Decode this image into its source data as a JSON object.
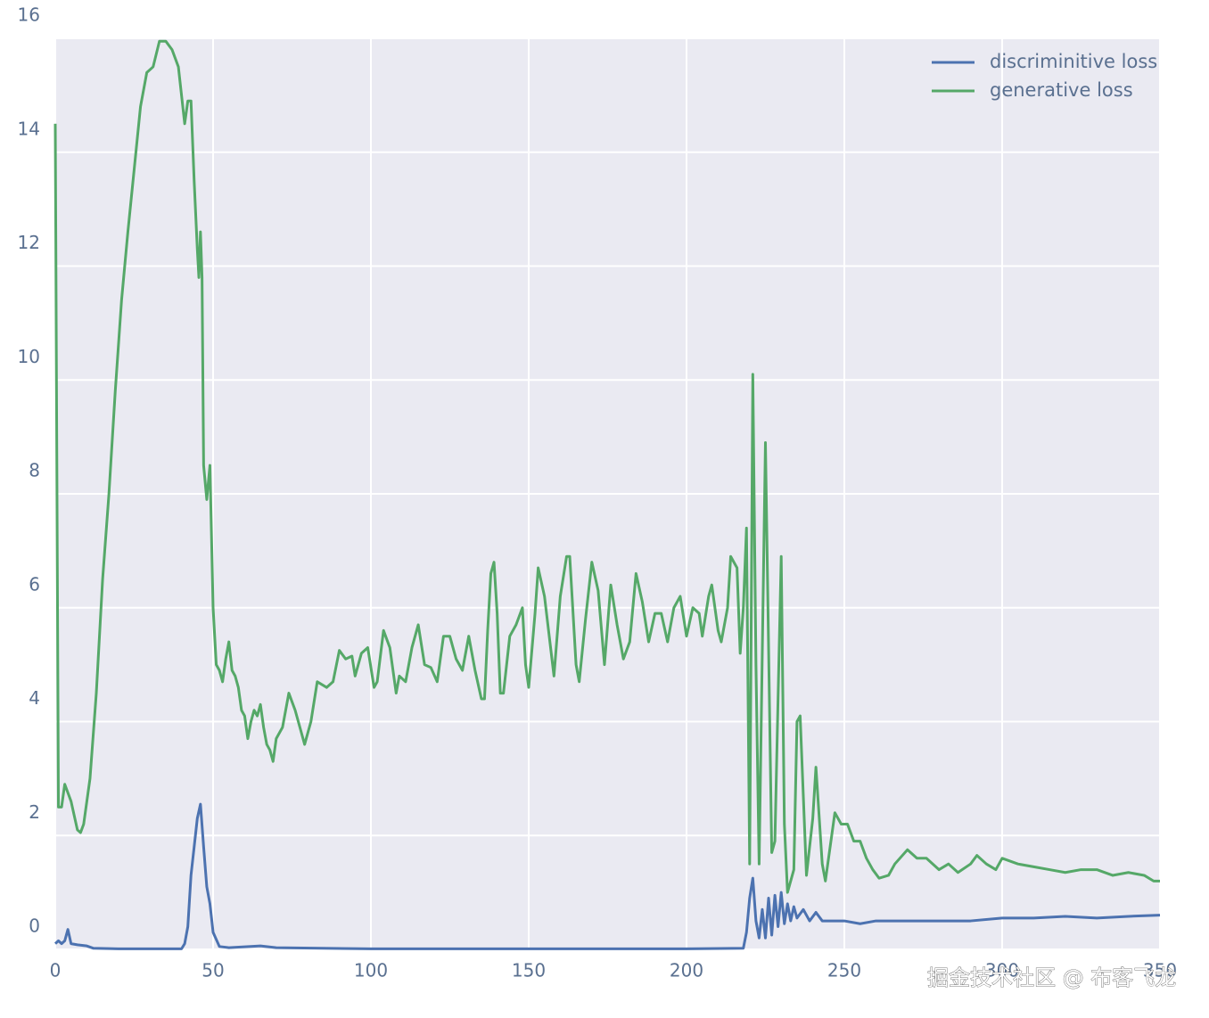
{
  "chart_data": {
    "type": "line",
    "xlim": [
      0,
      350
    ],
    "xticks": [
      0,
      50,
      100,
      150,
      200,
      250,
      300,
      350
    ],
    "ylim": [
      0,
      16
    ],
    "yticks": [
      0,
      2,
      4,
      6,
      8,
      10,
      12,
      14,
      16
    ],
    "grid": true,
    "legend": "upper right",
    "series": [
      {
        "name": "discriminitive loss",
        "color": "#4c72b0",
        "x": [
          0,
          1,
          2,
          3,
          4,
          5,
          7,
          10,
          12,
          20,
          40,
          41,
          42,
          43,
          44,
          45,
          46,
          47,
          48,
          49,
          50,
          52,
          55,
          65,
          70,
          100,
          150,
          200,
          218,
          219,
          220,
          221,
          222,
          223,
          224,
          225,
          226,
          227,
          228,
          229,
          230,
          231,
          232,
          233,
          234,
          235,
          237,
          239,
          241,
          243,
          250,
          255,
          260,
          270,
          280,
          290,
          300,
          310,
          320,
          330,
          340,
          350
        ],
        "values": [
          0.1,
          0.15,
          0.1,
          0.15,
          0.35,
          0.1,
          0.08,
          0.06,
          0.02,
          0.01,
          0.01,
          0.1,
          0.4,
          1.3,
          1.8,
          2.3,
          2.55,
          1.8,
          1.1,
          0.8,
          0.3,
          0.05,
          0.03,
          0.06,
          0.03,
          0.01,
          0.01,
          0.01,
          0.02,
          0.3,
          0.9,
          1.25,
          0.5,
          0.2,
          0.7,
          0.2,
          0.9,
          0.25,
          0.95,
          0.4,
          1.0,
          0.45,
          0.8,
          0.5,
          0.75,
          0.55,
          0.7,
          0.5,
          0.65,
          0.5,
          0.5,
          0.45,
          0.5,
          0.5,
          0.5,
          0.5,
          0.55,
          0.55,
          0.58,
          0.55,
          0.58,
          0.6
        ]
      },
      {
        "name": "generative loss",
        "color": "#55a868",
        "x": [
          0,
          1,
          2,
          3,
          5,
          7,
          8,
          9,
          11,
          13,
          15,
          17,
          19,
          21,
          23,
          25,
          27,
          29,
          31,
          33,
          35,
          37,
          39,
          40,
          41,
          42,
          43,
          44,
          45,
          45.5,
          46,
          46.5,
          47,
          48,
          49,
          50,
          51,
          52,
          53,
          54,
          55,
          56,
          57,
          58,
          59,
          60,
          61,
          62,
          63,
          64,
          65,
          66,
          67,
          68,
          69,
          70,
          72,
          74,
          76,
          78,
          79,
          81,
          83,
          86,
          88,
          90,
          92,
          94,
          95,
          97,
          99,
          101,
          102,
          104,
          106,
          108,
          109,
          111,
          113,
          115,
          117,
          119,
          121,
          123,
          125,
          127,
          129,
          131,
          133,
          135,
          136,
          137,
          138,
          139,
          140,
          141,
          142,
          144,
          146,
          148,
          149,
          150,
          152,
          153,
          155,
          158,
          160,
          162,
          163,
          165,
          166,
          168,
          170,
          172,
          174,
          176,
          178,
          180,
          182,
          184,
          186,
          188,
          190,
          192,
          194,
          196,
          198,
          200,
          202,
          204,
          205,
          207,
          208,
          210,
          211,
          213,
          214,
          216,
          217,
          218,
          219,
          220,
          221,
          222,
          223,
          225,
          227,
          228,
          230,
          231,
          232,
          234,
          235,
          236,
          238,
          240,
          241,
          243,
          244,
          246,
          247,
          249,
          251,
          253,
          255,
          257,
          259,
          261,
          264,
          266,
          270,
          273,
          276,
          280,
          283,
          286,
          290,
          292,
          295,
          298,
          300,
          305,
          310,
          315,
          320,
          325,
          330,
          335,
          340,
          345,
          348,
          350
        ],
        "values": [
          14.5,
          2.5,
          2.5,
          2.9,
          2.6,
          2.1,
          2.05,
          2.2,
          3.0,
          4.5,
          6.5,
          8.0,
          9.8,
          11.4,
          12.6,
          13.7,
          14.8,
          15.4,
          15.5,
          15.95,
          15.95,
          15.8,
          15.5,
          15.0,
          14.5,
          14.9,
          14.9,
          13.5,
          12.3,
          11.8,
          12.6,
          11.8,
          8.5,
          7.9,
          8.5,
          6.0,
          5.0,
          4.9,
          4.7,
          5.1,
          5.4,
          4.9,
          4.8,
          4.6,
          4.2,
          4.1,
          3.7,
          4.0,
          4.2,
          4.1,
          4.3,
          3.9,
          3.6,
          3.5,
          3.3,
          3.7,
          3.9,
          4.5,
          4.2,
          3.8,
          3.6,
          4.0,
          4.7,
          4.6,
          4.7,
          5.25,
          5.1,
          5.15,
          4.8,
          5.2,
          5.3,
          4.6,
          4.7,
          5.6,
          5.3,
          4.5,
          4.8,
          4.7,
          5.3,
          5.7,
          5.0,
          4.95,
          4.7,
          5.5,
          5.5,
          5.1,
          4.9,
          5.5,
          4.9,
          4.4,
          4.4,
          5.6,
          6.6,
          6.8,
          5.9,
          4.5,
          4.5,
          5.5,
          5.7,
          6.0,
          5.0,
          4.6,
          5.9,
          6.7,
          6.2,
          4.8,
          6.2,
          6.9,
          6.9,
          5.0,
          4.7,
          5.8,
          6.8,
          6.3,
          5.0,
          6.4,
          5.7,
          5.1,
          5.4,
          6.6,
          6.1,
          5.4,
          5.9,
          5.9,
          5.4,
          6.0,
          6.2,
          5.5,
          6.0,
          5.9,
          5.5,
          6.2,
          6.4,
          5.6,
          5.4,
          6.0,
          6.9,
          6.7,
          5.2,
          6.0,
          7.4,
          1.5,
          10.1,
          5.0,
          1.5,
          8.9,
          1.7,
          1.9,
          6.9,
          2.2,
          1.0,
          1.4,
          4.0,
          4.1,
          1.3,
          2.3,
          3.2,
          1.5,
          1.2,
          2.0,
          2.4,
          2.2,
          2.2,
          1.9,
          1.9,
          1.6,
          1.4,
          1.25,
          1.3,
          1.5,
          1.75,
          1.6,
          1.6,
          1.4,
          1.5,
          1.35,
          1.5,
          1.65,
          1.5,
          1.4,
          1.6,
          1.5,
          1.45,
          1.4,
          1.35,
          1.4,
          1.4,
          1.3,
          1.35,
          1.3,
          1.2,
          1.2
        ]
      }
    ]
  },
  "watermark": "掘金技术社区 @ 布客飞龙"
}
